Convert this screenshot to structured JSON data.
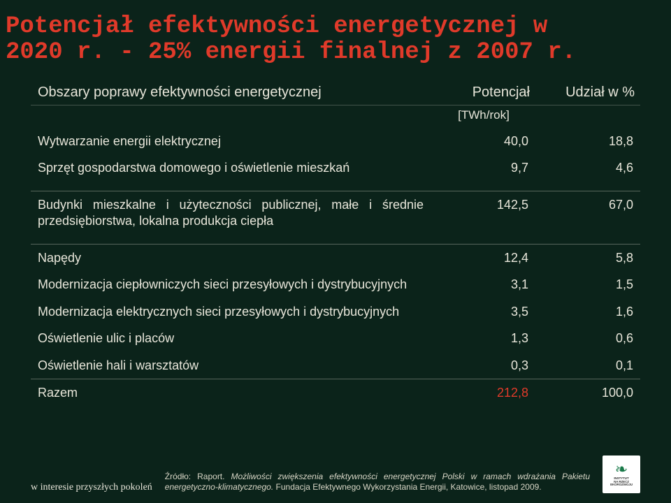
{
  "colors": {
    "bg": "#0b231a",
    "text": "#e8e6da",
    "title": "#e03a2a",
    "rule": "rgba(232,230,218,0.35)",
    "total_val": "#e03a2a",
    "footer": "#d8d6c6",
    "logo_bg": "#ffffff",
    "logo_green": "#1a7a4a"
  },
  "title_line1": "Potencjał efektywności energetycznej w",
  "title_line2": "2020 r. - 25% energii finalnej z 2007 r.",
  "headers": {
    "area": "Obszary poprawy efektywności energetycznej",
    "potential": "Potencjał",
    "share": "Udział w %",
    "unit": "[TWh/rok]"
  },
  "rows": [
    {
      "name": "Wytwarzanie energii elektrycznej",
      "pot": "40,0",
      "ud": "18,8"
    },
    {
      "name": "Sprzęt gospodarstwa domowego i oświetlenie mieszkań",
      "pot": "9,7",
      "ud": "4,6"
    }
  ],
  "row_block1": {
    "name": "Budynki mieszkalne i użyteczności publicznej, małe i średnie przedsiębiorstwa, lokalna produkcja ciepła",
    "pot": "142,5",
    "ud": "67,0"
  },
  "rows2": [
    {
      "name": "Napędy",
      "pot": "12,4",
      "ud": "5,8"
    },
    {
      "name": "Modernizacja ciepłowniczych sieci przesyłowych i dystrybucyjnych",
      "pot": "3,1",
      "ud": "1,5"
    },
    {
      "name": "Modernizacja elektrycznych sieci przesyłowych i dystrybucyjnych",
      "pot": "3,5",
      "ud": "1,6"
    },
    {
      "name": "Oświetlenie ulic i placów",
      "pot": "1,3",
      "ud": "0,6"
    },
    {
      "name": "Oświetlenie hali i warsztatów",
      "pot": "0,3",
      "ud": "0,1"
    }
  ],
  "total": {
    "name": "Razem",
    "pot": "212,8",
    "ud": "100,0"
  },
  "footer_tag": "w interesie przyszłych pokoleń",
  "source_prefix": "Źródło: Raport. ",
  "source_title": "Możliwości zwiększenia efektywności energetycznej Polski w ramach wdrażania Pakietu energetyczno-klimatycznego.",
  "source_suffix": " Fundacja Efektywnego Wykorzystania Energii, Katowice, listopad 2009.",
  "logo": {
    "mark": "❧",
    "line1": "INSTYTUT",
    "line2": "NA RZECZ",
    "line3": "EKOROZWOJU"
  }
}
